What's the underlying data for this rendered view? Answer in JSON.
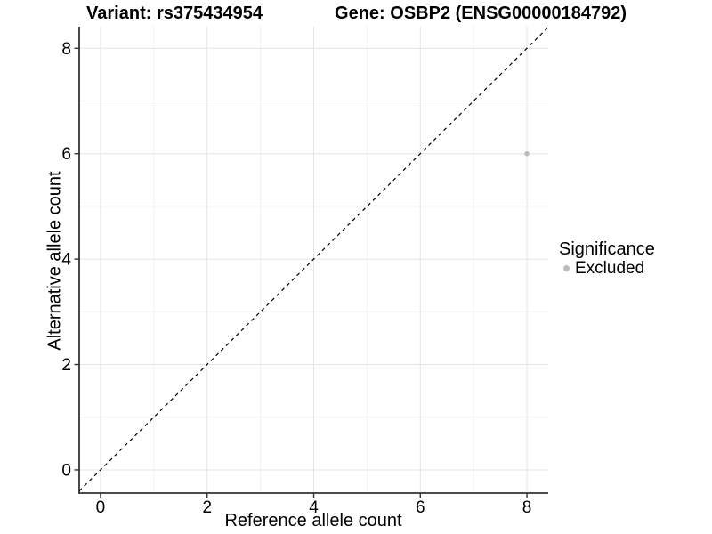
{
  "titles": {
    "variant": "Variant: rs375434954",
    "gene": "Gene: OSBP2 (ENSG00000184792)"
  },
  "chart_data": {
    "type": "scatter",
    "title": "Variant: rs375434954 | Gene: OSBP2 (ENSG00000184792)",
    "xlabel": "Reference allele count",
    "ylabel": "Alternative allele count",
    "xlim": [
      -0.4,
      8.4
    ],
    "ylim": [
      -0.44,
      8.41
    ],
    "xticks": [
      0,
      2,
      4,
      6,
      8
    ],
    "yticks": [
      0,
      2,
      4,
      6,
      8
    ],
    "grid": "major at even integers, minor at odd integers, white background",
    "points": [
      {
        "x": 8,
        "y": 6,
        "series": "Excluded"
      }
    ],
    "reference_line": {
      "type": "identity y=x",
      "style": "dashed",
      "color": "#000000"
    },
    "legend": {
      "title": "Significance",
      "position": "right",
      "items": [
        {
          "label": "Excluded",
          "color": "#bdbdbd"
        }
      ]
    },
    "colors": {
      "point": "#bdbdbd",
      "grid_major": "#e4e4e4",
      "grid_minor": "#f0f0f0",
      "axis_line": "#333333",
      "tick": "#333333",
      "text": "#000000"
    }
  }
}
